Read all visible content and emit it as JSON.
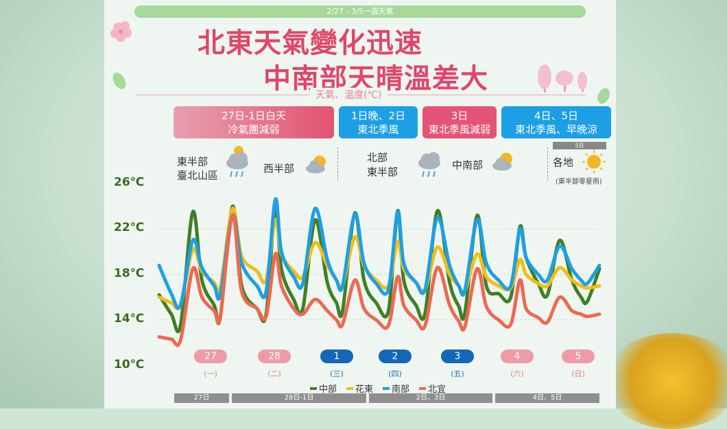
{
  "header": {
    "topbar": "2/27 - 3/5一週天氣",
    "title_line1": "北東天氣變化迅速",
    "title_line2": "中南部天晴溫差大",
    "subtitle": "天氣、溫度(℃)"
  },
  "period_boxes": [
    {
      "line1": "27日-1日白天",
      "line2": "冷氣團減弱"
    },
    {
      "line1": "1日晚、2日",
      "line2": "東北季風"
    },
    {
      "line1": "3日",
      "line2": "東北季風減弱"
    },
    {
      "line1": "4日、5日",
      "line2": "東北季風、早晚涼"
    }
  ],
  "weather_notes": {
    "a_region1": "東半部",
    "a_region2": "臺北山區",
    "a_region3": "西半部",
    "b_region1": "北部",
    "b_region2": "東半部",
    "b_region3": "中南部",
    "c_tag": "5日",
    "c_region": "各地",
    "c_note": "(東半部零星雨)",
    "icons": [
      "cloud-rain-icon",
      "partly-sunny-icon",
      "cloud-rain-icon",
      "partly-sunny-icon",
      "sun-icon"
    ]
  },
  "chart_data": {
    "type": "line",
    "y_ticks": [
      "26℃",
      "22℃",
      "18℃",
      "14℃",
      "10℃"
    ],
    "ylim": [
      10,
      26
    ],
    "x": [
      27.0,
      27.2,
      27.35,
      27.55,
      27.7,
      27.9,
      28.0,
      28.2,
      28.35,
      28.6,
      28.75,
      28.9,
      29.0,
      29.2,
      29.35,
      29.55,
      29.75,
      29.9,
      30.0,
      30.2,
      30.35,
      30.55,
      30.75,
      30.9,
      31.0,
      31.2,
      31.35,
      31.55,
      31.75,
      31.9,
      32.0,
      32.2,
      32.35,
      32.55,
      32.75,
      32.9,
      33.0,
      33.2,
      33.35,
      33.55,
      33.75,
      33.9,
      34.0,
      34.2
    ],
    "series": [
      {
        "name": "中部",
        "color": "#3f7f26",
        "values": [
          16.2,
          14.5,
          13.5,
          23.5,
          17.5,
          15.3,
          14.2,
          24.0,
          17.0,
          15.0,
          14.5,
          24.0,
          18.5,
          15.8,
          15.0,
          22.8,
          17.3,
          15.5,
          14.8,
          23.4,
          17.5,
          15.5,
          14.8,
          23.6,
          17.5,
          15.3,
          14.6,
          23.6,
          17.3,
          15.2,
          14.6,
          23.2,
          17.0,
          16.3,
          16.0,
          22.2,
          19.5,
          17.2,
          16.2,
          21.0,
          17.5,
          16.0,
          15.6,
          18.5
        ]
      },
      {
        "name": "花東",
        "color": "#f0be1a",
        "values": [
          16.0,
          15.5,
          15.3,
          20.2,
          18.3,
          17.3,
          16.8,
          23.8,
          19.6,
          18.3,
          17.5,
          22.8,
          19.8,
          18.3,
          17.8,
          20.8,
          18.8,
          17.5,
          17.0,
          21.3,
          18.8,
          17.5,
          17.0,
          20.9,
          18.5,
          17.3,
          16.7,
          20.4,
          18.0,
          17.0,
          16.6,
          19.8,
          17.8,
          17.0,
          16.8,
          19.3,
          18.0,
          17.2,
          17.0,
          18.6,
          17.5,
          17.0,
          16.8,
          17.0
        ]
      },
      {
        "name": "南部",
        "color": "#1d9fe6",
        "values": [
          18.8,
          16.3,
          15.3,
          21.0,
          18.6,
          17.0,
          16.2,
          23.2,
          19.0,
          17.0,
          16.5,
          24.6,
          20.0,
          17.8,
          17.2,
          23.8,
          19.3,
          17.5,
          17.0,
          23.3,
          19.0,
          17.2,
          16.7,
          23.5,
          19.0,
          17.3,
          16.7,
          23.0,
          18.8,
          17.0,
          16.6,
          22.8,
          19.0,
          17.5,
          17.0,
          22.0,
          19.5,
          18.0,
          17.5,
          20.5,
          18.5,
          17.5,
          17.2,
          18.8
        ]
      },
      {
        "name": "北宜",
        "color": "#ec6a50",
        "values": [
          12.5,
          12.3,
          12.2,
          18.5,
          16.0,
          14.8,
          14.3,
          23.2,
          16.5,
          15.0,
          14.3,
          19.8,
          17.0,
          15.0,
          14.5,
          15.8,
          14.8,
          14.0,
          13.6,
          17.5,
          15.0,
          14.0,
          13.5,
          17.8,
          15.3,
          14.0,
          13.5,
          18.6,
          15.3,
          13.9,
          13.4,
          18.5,
          15.2,
          14.0,
          13.6,
          17.5,
          15.0,
          14.2,
          13.8,
          16.0,
          14.8,
          14.5,
          14.3,
          14.5
        ]
      }
    ],
    "days": [
      {
        "num": "27",
        "wk": "(一)",
        "style": "pink"
      },
      {
        "num": "28",
        "wk": "(二)",
        "style": "pink"
      },
      {
        "num": "1",
        "wk": "(三)",
        "style": "blue"
      },
      {
        "num": "2",
        "wk": "(四)",
        "style": "blue"
      },
      {
        "num": "3",
        "wk": "(五)",
        "style": "blue"
      },
      {
        "num": "4",
        "wk": "(六)",
        "style": "pink"
      },
      {
        "num": "5",
        "wk": "(日)",
        "style": "pink"
      }
    ],
    "bottom_bars": [
      "27日",
      "28日-1日",
      "2日、3日",
      "4日、5日"
    ]
  }
}
